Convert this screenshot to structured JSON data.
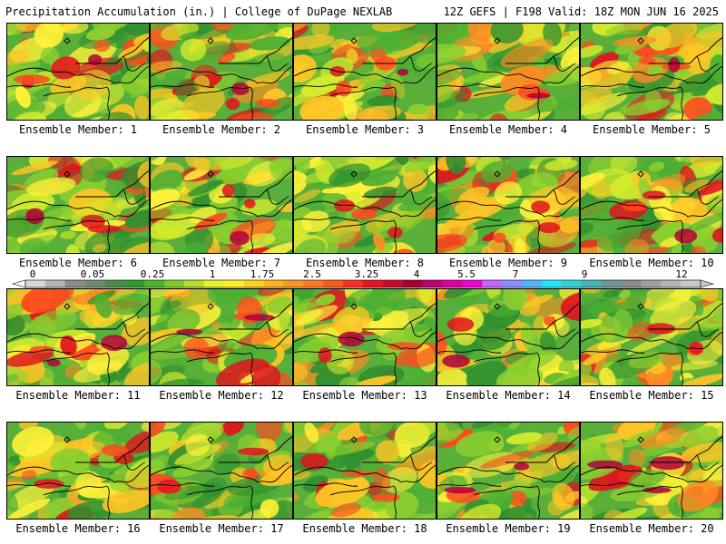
{
  "header": {
    "title_left": "Precipitation Accumulation (in.) | College of DuPage NEXLAB",
    "title_right": "12Z GEFS | F198 Valid: 18Z MON JUN 16 2025"
  },
  "panels": [
    {
      "label": "Ensemble Member: 1"
    },
    {
      "label": "Ensemble Member: 2"
    },
    {
      "label": "Ensemble Member: 3"
    },
    {
      "label": "Ensemble Member: 4"
    },
    {
      "label": "Ensemble Member: 5"
    },
    {
      "label": "Ensemble Member: 6"
    },
    {
      "label": "Ensemble Member: 7"
    },
    {
      "label": "Ensemble Member: 8"
    },
    {
      "label": "Ensemble Member: 9"
    },
    {
      "label": "Ensemble Member: 10"
    },
    {
      "label": "Ensemble Member: 11"
    },
    {
      "label": "Ensemble Member: 12"
    },
    {
      "label": "Ensemble Member: 13"
    },
    {
      "label": "Ensemble Member: 14"
    },
    {
      "label": "Ensemble Member: 15"
    },
    {
      "label": "Ensemble Member: 16"
    },
    {
      "label": "Ensemble Member: 17"
    },
    {
      "label": "Ensemble Member: 18"
    },
    {
      "label": "Ensemble Member: 19"
    },
    {
      "label": "Ensemble Member: 20"
    }
  ],
  "colorbar": {
    "tick_labels": [
      "0",
      "0.05",
      "0.25",
      "1",
      "1.75",
      "2.5",
      "3.25",
      "4",
      "5.5",
      "7",
      "9",
      "12"
    ],
    "colors": [
      "#d8d8d8",
      "#b4b4b4",
      "#8c8c8c",
      "#6e8c6e",
      "#4e8a4e",
      "#2e9b2e",
      "#4cb42a",
      "#7ccc2a",
      "#b4e02a",
      "#e6f52a",
      "#fff01e",
      "#ffd21e",
      "#ffb41e",
      "#ff961e",
      "#ff781e",
      "#ff5a1e",
      "#ff2d1e",
      "#e6141e",
      "#c80a28",
      "#a50032",
      "#be006e",
      "#dc00a0",
      "#f000d2",
      "#c864ff",
      "#8c8cff",
      "#50b4ff",
      "#1ee6ff",
      "#32d2d2",
      "#46b4b4",
      "#6e9696",
      "#8c8c8c",
      "#a0a0a0",
      "#b4b4b4",
      "#c8c8c8"
    ]
  }
}
